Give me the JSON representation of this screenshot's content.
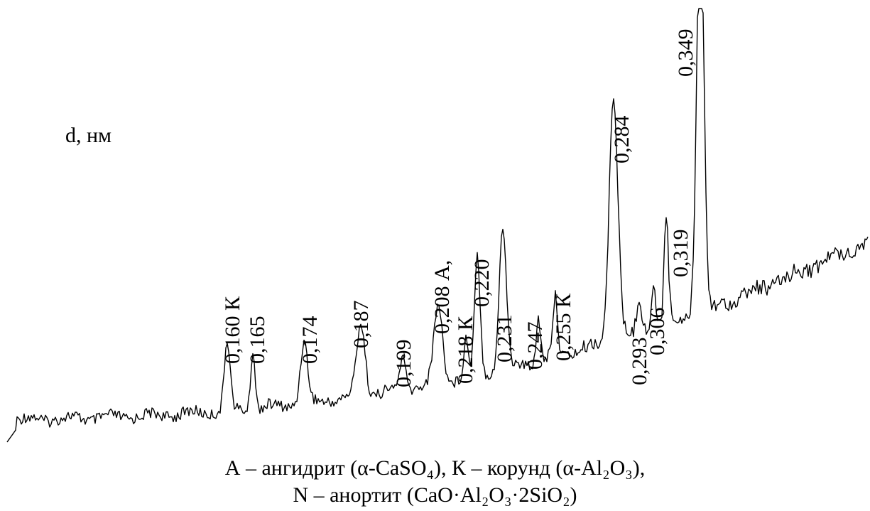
{
  "chart_data": {
    "type": "line",
    "title": "",
    "xlabel": "",
    "ylabel": "d, нм",
    "grid": false,
    "x_direction": "decreasing d to the left",
    "peaks": [
      {
        "label": "0,160 К",
        "d": 0.16,
        "intensity": 25
      },
      {
        "label": "0,165",
        "d": 0.165,
        "intensity": 22
      },
      {
        "label": "0,174",
        "d": 0.174,
        "intensity": 22
      },
      {
        "label": "0,187",
        "d": 0.187,
        "intensity": 26
      },
      {
        "label": "0,199",
        "d": 0.199,
        "intensity": 12
      },
      {
        "label": "0,208  А,",
        "d": 0.208,
        "intensity": 28
      },
      {
        "label": "0,218 К",
        "d": 0.218,
        "intensity": 14
      },
      {
        "label": "0,220",
        "d": 0.22,
        "intensity": 43
      },
      {
        "label": "0,231",
        "d": 0.231,
        "intensity": 51
      },
      {
        "label": "0,247",
        "d": 0.247,
        "intensity": 16
      },
      {
        "label": "0,255 К",
        "d": 0.255,
        "intensity": 22
      },
      {
        "label": "0,284",
        "d": 0.284,
        "intensity": 90
      },
      {
        "label": "0,293",
        "d": 0.293,
        "intensity": 13
      },
      {
        "label": "0,306",
        "d": 0.306,
        "intensity": 16
      },
      {
        "label": "0,319",
        "d": 0.319,
        "intensity": 40
      },
      {
        "label": "0,349",
        "d": 0.349,
        "intensity": 150
      }
    ]
  },
  "legend": {
    "line1": "А – ангидрит (α-CaSO₄), К – корунд (α-Al₂O₃),",
    "line2": "N – анортит (CaO·Al₂O₃·2SiO₂)"
  },
  "colors": {
    "line": "#000000",
    "background": "#ffffff"
  }
}
